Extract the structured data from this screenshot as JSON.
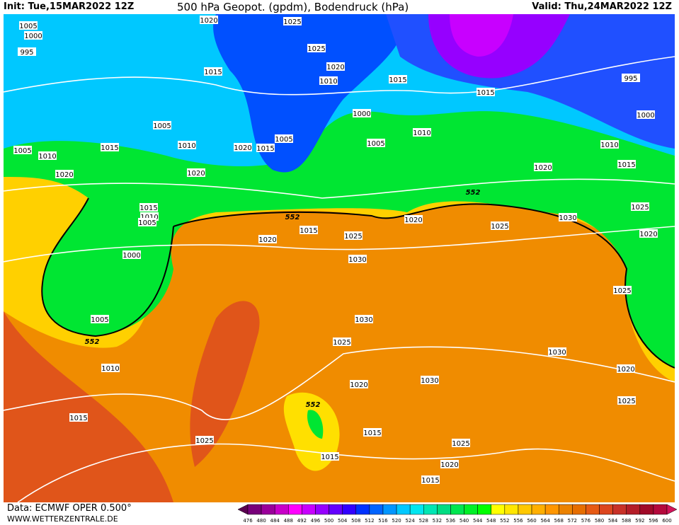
{
  "header": {
    "init": "Init: Tue,15MAR2022 12Z",
    "title": "500 hPa Geopot. (gpdm), Bodendruck (hPa)",
    "valid": "Valid: Thu,24MAR2022 12Z"
  },
  "footer": {
    "data_source": "Data: ECMWF OPER 0.500°",
    "website": "WWW.WETTERZENTRALE.DE"
  },
  "colorbar": {
    "labels": [
      "476",
      "480",
      "484",
      "488",
      "492",
      "496",
      "500",
      "504",
      "508",
      "512",
      "516",
      "520",
      "524",
      "528",
      "532",
      "536",
      "540",
      "544",
      "548",
      "552",
      "556",
      "560",
      "564",
      "568",
      "572",
      "576",
      "580",
      "584",
      "588",
      "592",
      "596",
      "600"
    ],
    "colors": [
      "#5a0050",
      "#78007a",
      "#9a009a",
      "#c800c8",
      "#ff00ff",
      "#c800ff",
      "#9600ff",
      "#6400ff",
      "#3200ff",
      "#0032ff",
      "#0064ff",
      "#0096ff",
      "#00c8ff",
      "#00e6f0",
      "#00e6b4",
      "#00dc82",
      "#00e650",
      "#00f028",
      "#00ff00",
      "#ffff00",
      "#ffe600",
      "#ffc800",
      "#ffaf00",
      "#ff9600",
      "#eb8200",
      "#e66e00",
      "#e65a14",
      "#dc461e",
      "#c83228",
      "#b41e28",
      "#a00a28",
      "#b40a3c",
      "#d2145a"
    ]
  },
  "map": {
    "contour_552_label": "552",
    "pressure_labels": [
      "1020",
      "1025",
      "1005",
      "1000",
      "995",
      "1025",
      "1015",
      "1020",
      "1010",
      "1015",
      "1015",
      "995",
      "1000",
      "1000",
      "1005",
      "1010",
      "1005",
      "1005",
      "1015",
      "1010",
      "1020",
      "1015",
      "1010",
      "1015",
      "1005",
      "1010",
      "1020",
      "1020",
      "1020",
      "552",
      "1015",
      "1010",
      "1005",
      "1025",
      "552",
      "1020",
      "1030",
      "1025",
      "1015",
      "1025",
      "1020",
      "1020",
      "1000",
      "1030",
      "1025",
      "1030",
      "1005",
      "552",
      "1025",
      "1030",
      "1010",
      "1020",
      "1020",
      "1030",
      "1025",
      "552",
      "1015",
      "1015",
      "1025",
      "1025",
      "1015",
      "1020",
      "1015"
    ]
  }
}
